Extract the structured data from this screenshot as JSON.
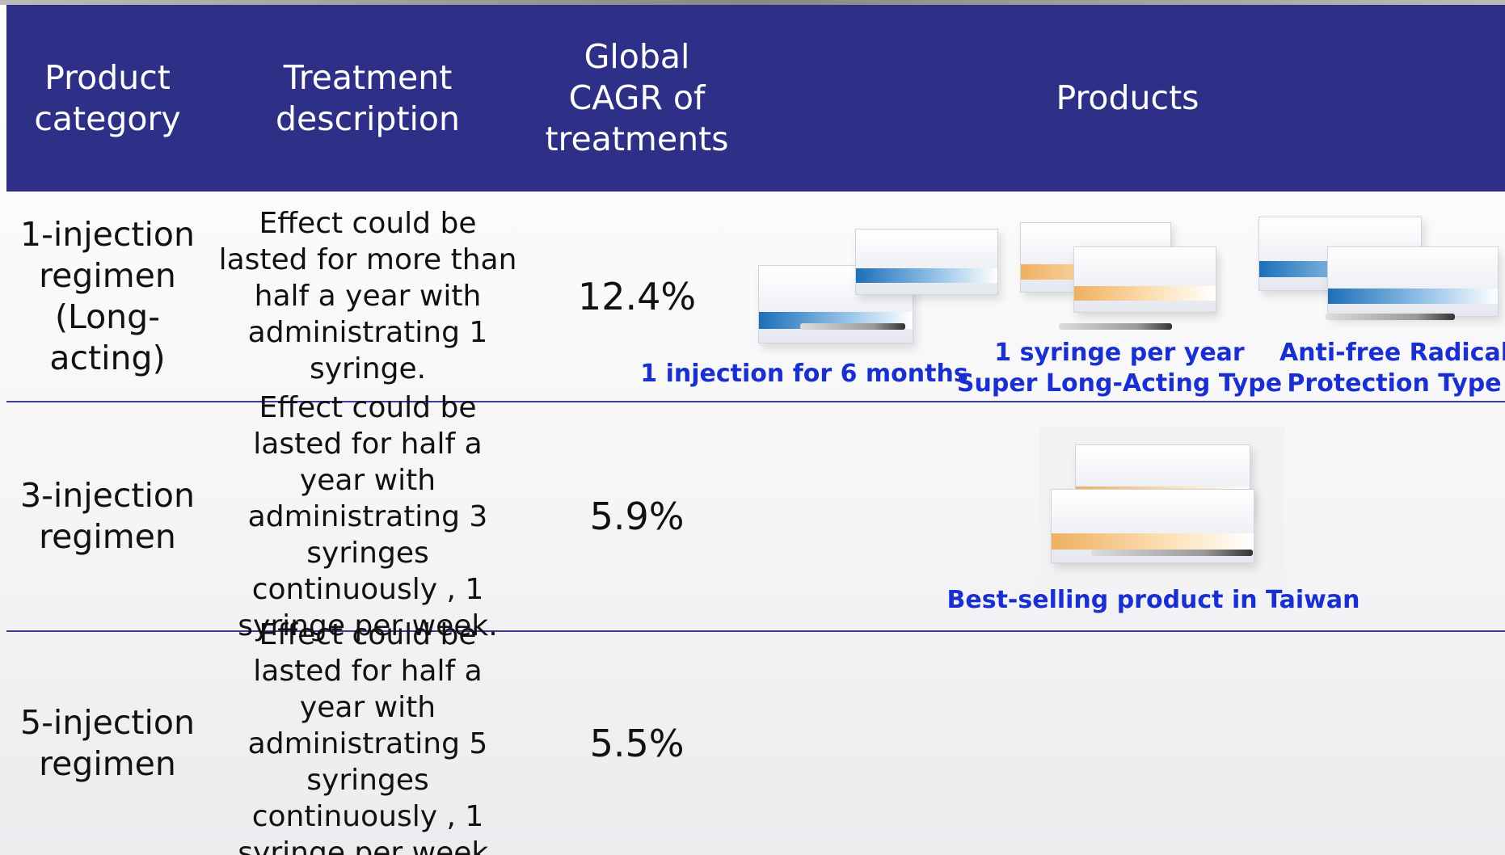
{
  "table": {
    "header": [
      "Product category",
      "Treatment description",
      "Global CAGR of treatments",
      "Products"
    ],
    "rows": [
      {
        "category": "1-injection regimen (Long-acting)",
        "description": "Effect could be lasted for more than half a year with administrating 1 syringe.",
        "cagr": "12.4%",
        "products": [
          {
            "caption": [
              "1 injection for 6 months"
            ]
          },
          {
            "caption": [
              "1 syringe per year",
              "Super Long-Acting Type"
            ]
          },
          {
            "caption": [
              "Anti-free Radical",
              "Protection Type"
            ]
          }
        ]
      },
      {
        "category": "3-injection regimen",
        "description": "Effect could be lasted for half a year with administrating 3 syringes continuously , 1 syringe per week.",
        "cagr": "5.9%",
        "products": [
          {
            "caption": [
              "Best-selling product in Taiwan"
            ]
          }
        ]
      },
      {
        "category": "5-injection regimen",
        "description": "Effect could be lasted for half a year with administrating 5 syringes continuously , 1 syringe per week.",
        "cagr": "5.5%"
      }
    ]
  }
}
